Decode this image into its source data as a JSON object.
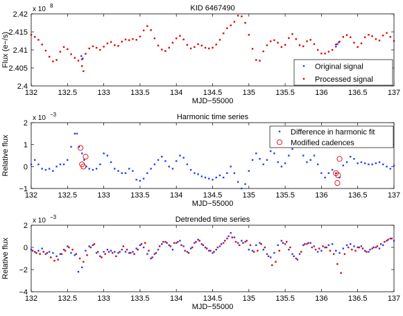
{
  "chart_data": [
    {
      "type": "scatter",
      "title": "KID 6467490",
      "xlabel": "MJD−55000",
      "ylabel": "Flux (e−/s)",
      "exponent_label": "x 10",
      "exponent_power": "8",
      "xlim": [
        132,
        137
      ],
      "ylim": [
        2.4,
        2.42
      ],
      "xticks": [
        132,
        132.5,
        133,
        133.5,
        134,
        134.5,
        135,
        135.5,
        136,
        136.5,
        137
      ],
      "xtick_labels": [
        "132",
        "132.5",
        "133",
        "133.5",
        "134",
        "134.5",
        "135",
        "135.5",
        "136",
        "136.5",
        "137"
      ],
      "yticks": [
        2.4,
        2.405,
        2.41,
        2.415,
        2.42
      ],
      "ytick_labels": [
        "2.4",
        "2.405",
        "2.41",
        "2.415",
        "2.42"
      ],
      "legend_position": "bottom-right",
      "series": [
        {
          "name": "Original signal",
          "color": "#1f3fff",
          "marker": "dot",
          "x": [
            132.69,
            132.71,
            136.2,
            136.22,
            136.24
          ],
          "y": [
            2.4083,
            2.4076,
            2.4109,
            2.4116,
            2.4121
          ]
        },
        {
          "name": "Processed signal",
          "color": "#e00000",
          "marker": "dot",
          "x": [
            132.0,
            132.05,
            132.1,
            132.15,
            132.2,
            132.25,
            132.3,
            132.35,
            132.4,
            132.45,
            132.5,
            132.55,
            132.6,
            132.65,
            132.7,
            132.75,
            132.8,
            132.85,
            132.9,
            132.95,
            133.0,
            133.05,
            133.1,
            133.15,
            133.2,
            133.25,
            133.3,
            133.35,
            133.4,
            133.45,
            133.5,
            133.55,
            133.6,
            133.65,
            133.7,
            133.75,
            133.8,
            133.85,
            133.9,
            133.95,
            134.0,
            134.05,
            134.1,
            134.15,
            134.2,
            134.25,
            134.3,
            134.35,
            134.4,
            134.45,
            134.5,
            134.55,
            134.6,
            134.65,
            134.7,
            134.75,
            134.8,
            134.85,
            134.9,
            134.95,
            135.0,
            135.05,
            135.1,
            135.15,
            135.2,
            135.25,
            135.3,
            135.35,
            135.4,
            135.45,
            135.5,
            135.55,
            135.6,
            135.65,
            135.7,
            135.75,
            135.8,
            135.85,
            135.9,
            135.95,
            136.0,
            136.05,
            136.1,
            136.15,
            136.2,
            136.25,
            136.3,
            136.35,
            136.4,
            136.45,
            136.5,
            136.55,
            136.6,
            136.65,
            136.7,
            136.75,
            136.8,
            136.85,
            136.9,
            136.95,
            137.0,
            132.7,
            132.72
          ],
          "y": [
            2.4142,
            2.4136,
            2.4128,
            2.4115,
            2.4098,
            2.4081,
            2.4068,
            2.4072,
            2.4095,
            2.4108,
            2.4102,
            2.4088,
            2.4078,
            2.407,
            2.4074,
            2.4089,
            2.4104,
            2.411,
            2.4106,
            2.41,
            2.4109,
            2.4118,
            2.4122,
            2.4113,
            2.4111,
            2.4123,
            2.4129,
            2.4127,
            2.413,
            2.4128,
            2.4137,
            2.4154,
            2.4166,
            2.4155,
            2.4132,
            2.4112,
            2.4101,
            2.4097,
            2.4106,
            2.412,
            2.4132,
            2.4139,
            2.4129,
            2.4114,
            2.4104,
            2.4108,
            2.4116,
            2.4112,
            2.4106,
            2.4104,
            2.4106,
            2.4115,
            2.4128,
            2.4146,
            2.416,
            2.4168,
            2.4178,
            2.4195,
            2.4193,
            2.4175,
            2.4142,
            2.4103,
            2.4072,
            2.407,
            2.4096,
            2.4113,
            2.4124,
            2.4127,
            2.412,
            2.4108,
            2.4114,
            2.4133,
            2.4144,
            2.413,
            2.4113,
            2.411,
            2.4124,
            2.4128,
            2.4116,
            2.41,
            2.409,
            2.409,
            2.4095,
            2.41,
            2.4115,
            2.4123,
            2.4136,
            2.4141,
            2.4135,
            2.412,
            2.4108,
            2.4118,
            2.4135,
            2.4142,
            2.4138,
            2.413,
            2.4126,
            2.414,
            2.4147,
            2.4136,
            2.4125,
            2.4055,
            2.4041
          ]
        }
      ]
    },
    {
      "type": "scatter",
      "title": "Harmonic time series",
      "xlabel": "MJD−55000",
      "ylabel": "Relative flux",
      "exponent_label": "x 10",
      "exponent_power": "−3",
      "xlim": [
        132,
        137
      ],
      "ylim": [
        -1,
        2
      ],
      "xticks": [
        132,
        132.5,
        133,
        133.5,
        134,
        134.5,
        135,
        135.5,
        136,
        136.5,
        137
      ],
      "xtick_labels": [
        "132",
        "132.5",
        "133",
        "133.5",
        "134",
        "134.5",
        "135",
        "135.5",
        "136",
        "136.5",
        "137"
      ],
      "yticks": [
        -1,
        0,
        1,
        2
      ],
      "ytick_labels": [
        "−1",
        "0",
        "1",
        "2"
      ],
      "legend_position": "top-right",
      "series": [
        {
          "name": "Difference in harmonic fit",
          "color": "#1f3fff",
          "marker": "dot",
          "x": [
            132.0,
            132.05,
            132.1,
            132.15,
            132.2,
            132.25,
            132.3,
            132.35,
            132.4,
            132.45,
            132.5,
            132.55,
            132.6,
            132.63,
            132.66,
            132.7,
            132.73,
            132.76,
            132.8,
            132.85,
            132.9,
            132.95,
            133.0,
            133.05,
            133.1,
            133.15,
            133.2,
            133.25,
            133.3,
            133.35,
            133.4,
            133.45,
            133.5,
            133.55,
            133.6,
            133.65,
            133.7,
            133.75,
            133.8,
            133.85,
            133.9,
            133.95,
            134.0,
            134.05,
            134.1,
            134.15,
            134.2,
            134.25,
            134.3,
            134.35,
            134.4,
            134.45,
            134.5,
            134.55,
            134.6,
            134.65,
            134.7,
            134.75,
            134.8,
            134.85,
            134.9,
            134.95,
            135.0,
            135.05,
            135.1,
            135.15,
            135.2,
            135.25,
            135.3,
            135.35,
            135.4,
            135.45,
            135.5,
            135.55,
            135.6,
            135.65,
            135.7,
            135.75,
            135.8,
            135.85,
            135.9,
            135.95,
            136.0,
            136.05,
            136.1,
            136.15,
            136.2,
            136.25,
            136.3,
            136.35,
            136.4,
            136.45,
            136.5,
            136.55,
            136.6,
            136.65,
            136.7,
            136.75,
            136.8,
            136.85,
            136.9,
            136.95,
            137.0
          ],
          "y": [
            0.1,
            0.3,
            0.1,
            -0.1,
            -0.15,
            -0.1,
            -0.2,
            0.0,
            0.1,
            0.1,
            0.3,
            0.9,
            1.5,
            1.5,
            0.9,
            0.6,
            0.3,
            0.0,
            -0.1,
            -0.15,
            -0.1,
            0.1,
            0.6,
            0.5,
            0.2,
            -0.1,
            -0.2,
            -0.3,
            -0.3,
            -0.1,
            -0.2,
            -0.6,
            -0.65,
            -0.55,
            -0.3,
            -0.1,
            0.1,
            0.3,
            0.45,
            0.25,
            0.0,
            -0.1,
            0.25,
            0.5,
            0.4,
            0.1,
            -0.15,
            -0.3,
            -0.35,
            -0.45,
            -0.5,
            -0.55,
            -0.6,
            -0.5,
            -0.4,
            -0.5,
            -0.3,
            0.0,
            -0.3,
            -0.7,
            -1.0,
            -0.8,
            -0.2,
            0.3,
            0.6,
            0.35,
            0.1,
            0.3,
            0.7,
            0.6,
            0.2,
            0.0,
            0.15,
            0.5,
            0.8,
            1.2,
            1.1,
            0.5,
            0.2,
            0.3,
            0.5,
            0.1,
            -0.3,
            -0.5,
            -0.3,
            -0.15,
            -0.3,
            -0.5,
            0.05,
            0.2,
            0.45,
            0.35,
            0.15,
            0.2,
            0.15,
            0.1,
            0.1,
            0.15,
            0.2,
            0.1,
            0.0,
            -0.1,
            0.05
          ]
        },
        {
          "name": "Modified cadences",
          "color": "#e00000",
          "marker": "circle",
          "x": [
            132.68,
            132.7,
            132.72,
            132.75,
            136.2,
            136.22,
            136.23,
            136.25
          ],
          "y": [
            0.85,
            0.1,
            0.0,
            0.45,
            -0.3,
            -0.75,
            -0.4,
            0.35
          ]
        }
      ]
    },
    {
      "type": "scatter",
      "title": "Detrended time series",
      "xlabel": "MJD−55000",
      "ylabel": "Relative flux",
      "exponent_label": "x 10",
      "exponent_power": "−3",
      "xlim": [
        132,
        137
      ],
      "ylim": [
        -4,
        2
      ],
      "xticks": [
        132,
        132.5,
        133,
        133.5,
        134,
        134.5,
        135,
        135.5,
        136,
        136.5,
        137
      ],
      "xtick_labels": [
        "132",
        "132.5",
        "133",
        "133.5",
        "134",
        "134.5",
        "135",
        "135.5",
        "136",
        "136.5",
        "137"
      ],
      "yticks": [
        -4,
        -2,
        0,
        2
      ],
      "ytick_labels": [
        "−4",
        "−2",
        "0",
        "2"
      ],
      "series": [
        {
          "color": "#1f3fff",
          "marker": "dot",
          "x": [
            132.0,
            132.05,
            132.1,
            132.15,
            132.2,
            132.25,
            132.3,
            132.35,
            132.4,
            132.45,
            132.5,
            132.55,
            132.6,
            132.65,
            132.7,
            132.75,
            132.8,
            132.85,
            132.9,
            132.95,
            133.0,
            133.05,
            133.1,
            133.15,
            133.2,
            133.25,
            133.3,
            133.35,
            133.4,
            133.45,
            133.5,
            133.55,
            133.6,
            133.65,
            133.7,
            133.75,
            133.8,
            133.85,
            133.9,
            133.95,
            134.0,
            134.05,
            134.1,
            134.15,
            134.2,
            134.25,
            134.3,
            134.35,
            134.4,
            134.45,
            134.5,
            134.55,
            134.6,
            134.65,
            134.7,
            134.75,
            134.8,
            134.85,
            134.9,
            134.95,
            135.0,
            135.05,
            135.1,
            135.15,
            135.2,
            135.25,
            135.3,
            135.35,
            135.4,
            135.45,
            135.5,
            135.55,
            135.6,
            135.65,
            135.7,
            135.75,
            135.8,
            135.85,
            135.9,
            135.95,
            136.0,
            136.05,
            136.1,
            136.15,
            136.2,
            136.25,
            136.3,
            136.35,
            136.4,
            136.45,
            136.5,
            136.55,
            136.6,
            136.65,
            136.7,
            136.75,
            136.8,
            136.85,
            136.9,
            136.95,
            137.0
          ],
          "y": [
            -0.2,
            -0.4,
            -0.3,
            -0.1,
            -0.6,
            -0.4,
            -0.5,
            -0.8,
            -0.6,
            -0.2,
            0.1,
            -0.5,
            -0.7,
            -2.2,
            -1.8,
            -0.3,
            0.1,
            0.2,
            -0.5,
            -0.8,
            -0.4,
            -0.2,
            -0.3,
            -0.4,
            -0.5,
            -0.2,
            -0.4,
            -0.5,
            -0.4,
            -0.1,
            0.2,
            0.0,
            -0.6,
            -1.0,
            -0.6,
            -0.2,
            0.3,
            0.5,
            0.2,
            -0.2,
            0.4,
            0.6,
            0.1,
            -0.4,
            -0.1,
            0.4,
            0.7,
            0.3,
            0.0,
            -0.3,
            -0.5,
            -0.2,
            0.1,
            0.4,
            0.8,
            1.3,
            0.9,
            0.4,
            0.6,
            0.5,
            -0.2,
            -0.3,
            0.2,
            0.4,
            -0.2,
            -0.6,
            -0.9,
            -0.5,
            0.2,
            0.6,
            0.3,
            -0.2,
            -0.6,
            -1.0,
            -0.6,
            0.2,
            0.3,
            0.4,
            0.1,
            -0.4,
            -0.3,
            0.0,
            0.2,
            0.3,
            -0.3,
            -0.5,
            -0.1,
            0.2,
            0.3,
            0.1,
            0.0,
            0.1,
            -0.3,
            -0.4,
            -0.1,
            0.0,
            -0.1,
            0.2,
            0.6,
            0.8,
            0.6
          ]
        },
        {
          "color": "#e00000",
          "marker": "dot",
          "x": [
            132.02,
            132.07,
            132.12,
            132.17,
            132.22,
            132.27,
            132.32,
            132.37,
            132.42,
            132.47,
            132.52,
            132.57,
            132.62,
            132.67,
            132.72,
            132.77,
            132.82,
            132.87,
            132.92,
            132.97,
            133.02,
            133.07,
            133.12,
            133.17,
            133.22,
            133.27,
            133.32,
            133.37,
            133.42,
            133.47,
            133.52,
            133.57,
            133.62,
            133.67,
            133.72,
            133.77,
            133.82,
            133.87,
            133.92,
            133.97,
            134.02,
            134.07,
            134.12,
            134.17,
            134.22,
            134.27,
            134.32,
            134.37,
            134.42,
            134.47,
            134.52,
            134.57,
            134.62,
            134.67,
            134.72,
            134.77,
            134.82,
            134.87,
            134.92,
            134.97,
            135.02,
            135.07,
            135.12,
            135.17,
            135.22,
            135.27,
            135.32,
            135.37,
            135.42,
            135.47,
            135.52,
            135.57,
            135.62,
            135.67,
            135.72,
            135.77,
            135.82,
            135.87,
            135.92,
            135.97,
            136.02,
            136.07,
            136.12,
            136.17,
            136.22,
            136.27,
            136.32,
            136.37,
            136.42,
            136.47,
            136.52,
            136.57,
            136.62,
            136.67,
            136.72,
            136.77,
            136.82,
            136.87,
            136.92,
            136.97
          ],
          "y": [
            -0.3,
            -0.5,
            -0.6,
            -0.4,
            -0.5,
            -0.9,
            -1.2,
            -1.1,
            -0.6,
            -0.3,
            0.0,
            -0.2,
            -0.6,
            -1.0,
            -1.3,
            -0.7,
            0.0,
            0.3,
            -0.4,
            -0.9,
            -0.6,
            -0.4,
            -0.5,
            -0.8,
            -0.4,
            0.1,
            -0.2,
            -0.5,
            -0.6,
            -0.2,
            0.3,
            0.4,
            -0.3,
            -0.9,
            -0.5,
            0.1,
            0.5,
            0.4,
            0.1,
            0.4,
            0.5,
            0.2,
            -0.3,
            -0.5,
            0.0,
            0.5,
            0.6,
            0.2,
            -0.1,
            -0.3,
            -0.4,
            0.0,
            0.3,
            0.6,
            1.0,
            0.9,
            0.5,
            0.2,
            0.4,
            0.6,
            0.2,
            -0.4,
            -0.3,
            0.3,
            0.0,
            -0.8,
            -1.6,
            -1.3,
            -0.3,
            0.4,
            0.5,
            0.0,
            -0.8,
            -1.1,
            -0.4,
            0.3,
            0.4,
            0.0,
            -0.2,
            -0.1,
            0.1,
            0.0,
            -0.3,
            -0.6,
            -1.5,
            -2.3,
            -0.6,
            0.0,
            -0.2,
            -0.3,
            0.0,
            -0.1,
            -0.4,
            -0.2,
            0.0,
            0.1,
            0.3,
            0.5,
            0.7,
            0.8
          ]
        }
      ]
    }
  ]
}
